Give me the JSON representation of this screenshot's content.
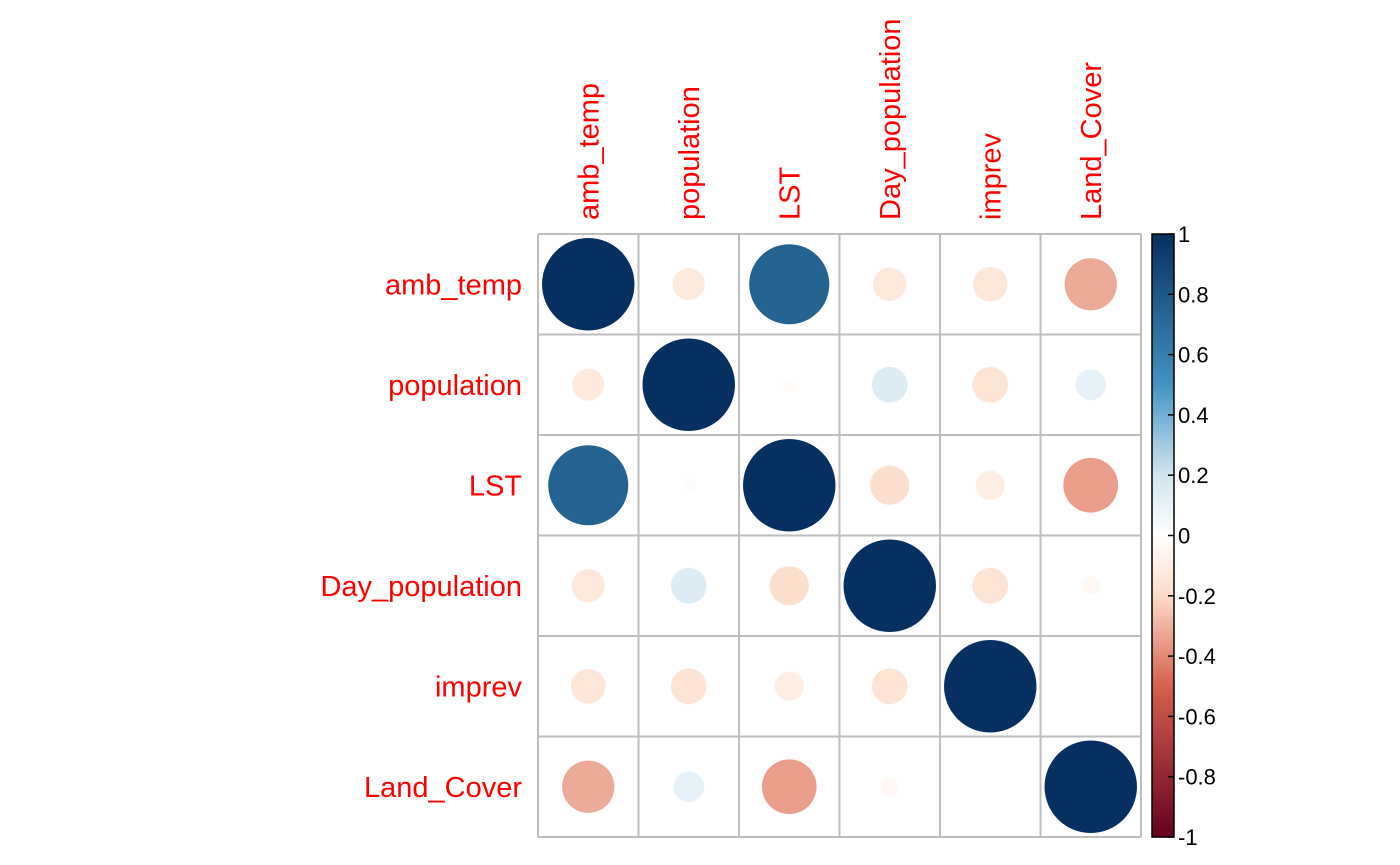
{
  "chart_data": {
    "type": "heatmap",
    "glyph": "circle",
    "title": "",
    "variables": [
      "amb_temp",
      "population",
      "LST",
      "Day_population",
      "imprev",
      "Land_Cover"
    ],
    "matrix": [
      [
        1.0,
        -0.12,
        0.75,
        -0.13,
        -0.14,
        -0.32
      ],
      [
        -0.12,
        1.0,
        -0.02,
        0.15,
        -0.15,
        0.11
      ],
      [
        0.75,
        -0.02,
        1.0,
        -0.18,
        -0.1,
        -0.35
      ],
      [
        -0.13,
        0.15,
        -0.18,
        1.0,
        -0.15,
        -0.04
      ],
      [
        -0.14,
        -0.15,
        -0.1,
        -0.15,
        1.0,
        0.0
      ],
      [
        -0.32,
        0.11,
        -0.35,
        -0.04,
        0.0,
        1.0
      ]
    ],
    "colorbar": {
      "range": [
        -1,
        1
      ],
      "tick_labels": [
        "1",
        "0.8",
        "0.6",
        "0.4",
        "0.2",
        "0",
        "-0.2",
        "-0.4",
        "-0.6",
        "-0.8",
        "-1"
      ],
      "colors": {
        "neg_end": "#67001f",
        "neg_mid": "#d6604d",
        "neg_light": "#fddbc7",
        "zero": "#ffffff",
        "pos_light": "#d1e5f0",
        "pos_mid": "#4393c3",
        "pos_end": "#053061"
      }
    },
    "label_color": "#ff0000",
    "grid_color": "#bdbdbd"
  }
}
